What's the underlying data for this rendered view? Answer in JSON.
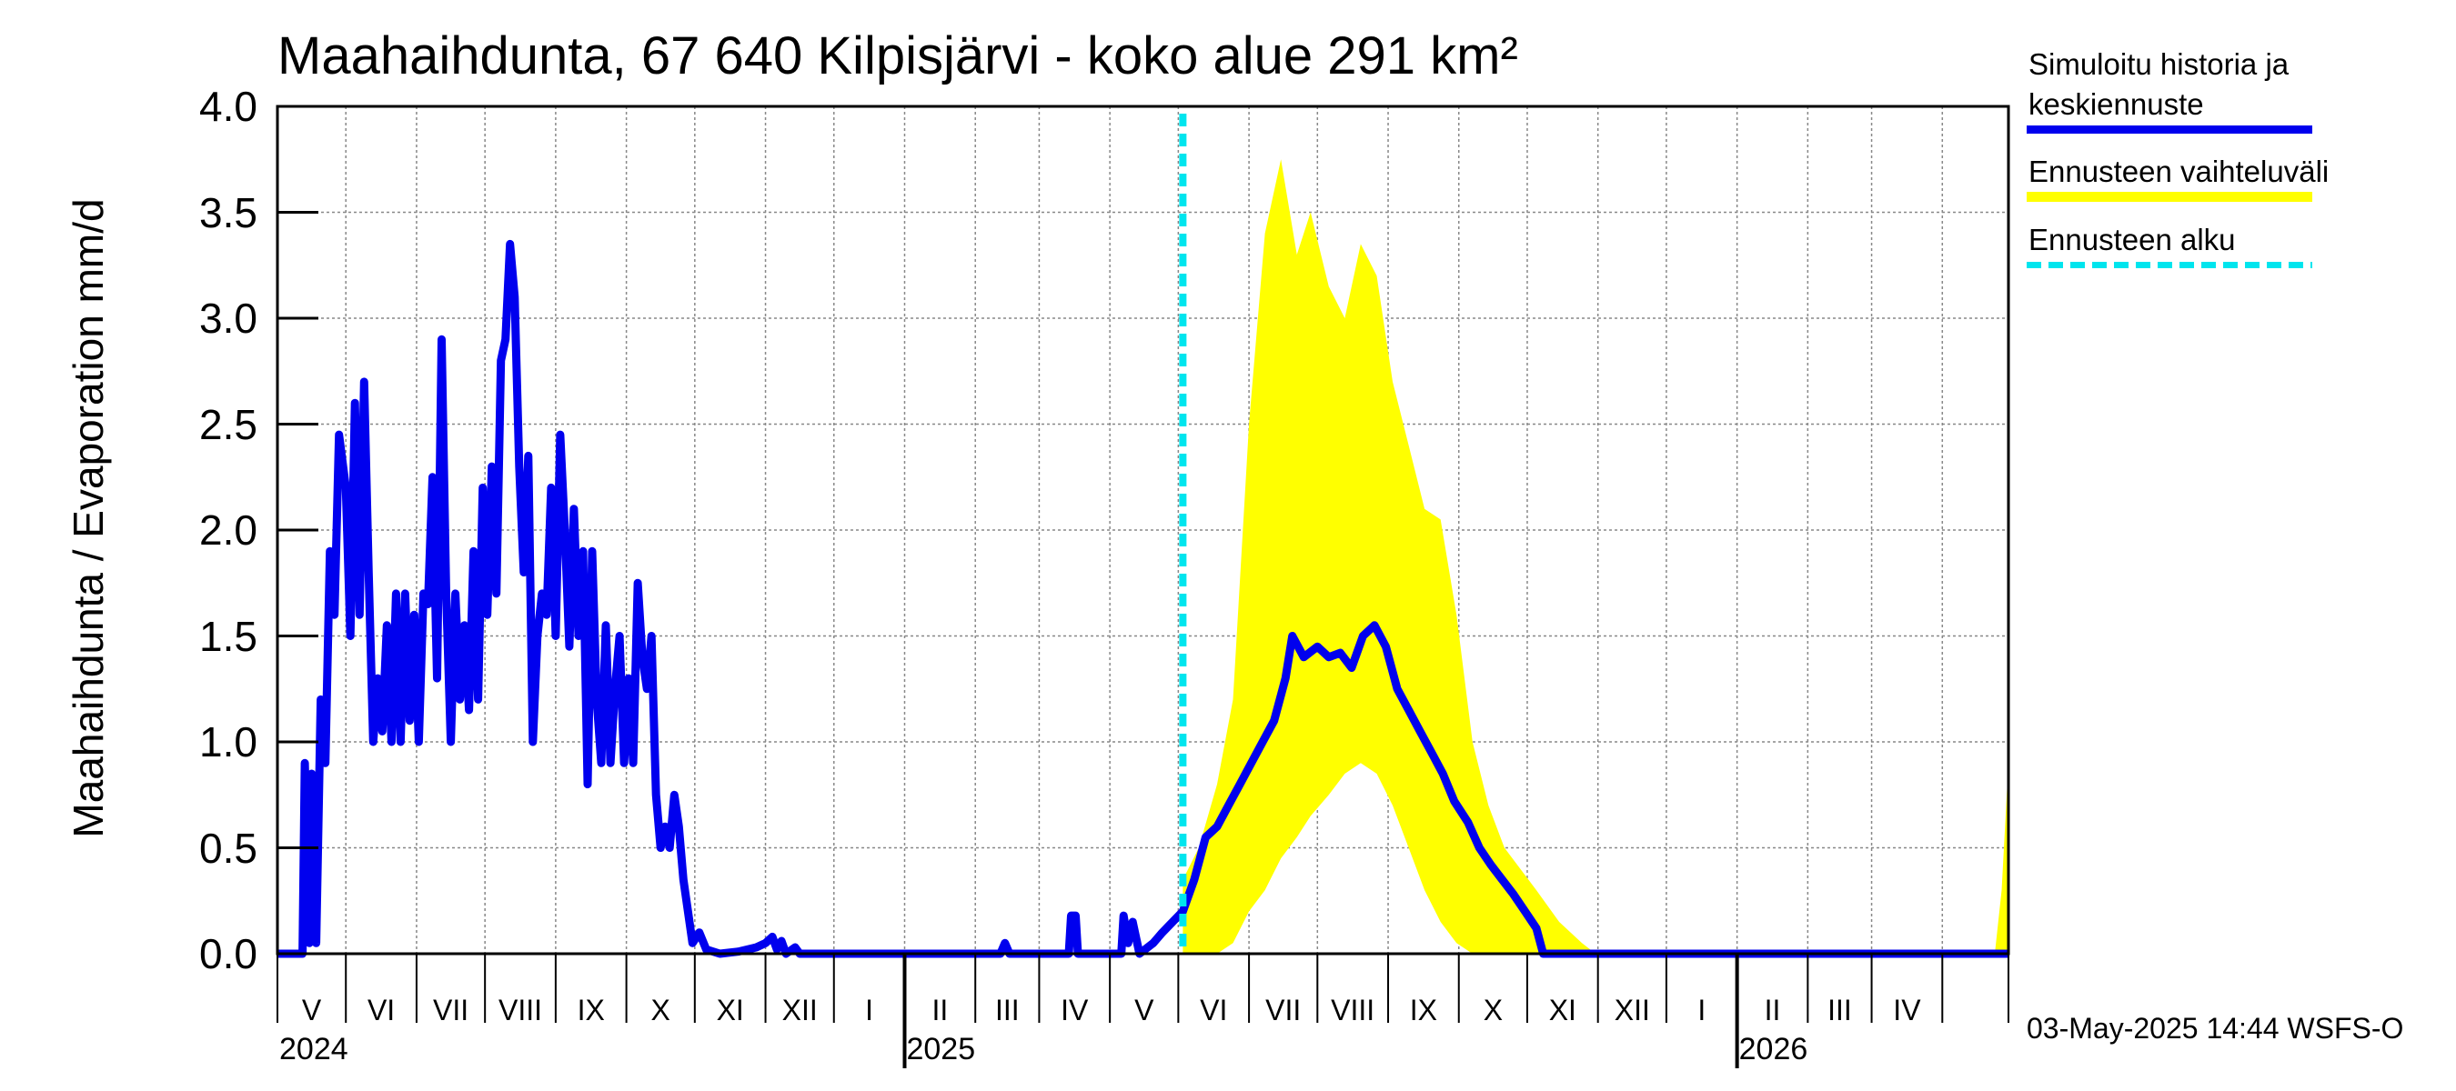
{
  "chart_data": {
    "type": "line",
    "title": "Maahaihdunta, 67 640 Kilpisjärvi - koko alue 291 km²",
    "ylabel": "Maahaihdunta / Evaporation   mm/d",
    "ylim": [
      0,
      4.0
    ],
    "y_ticks": [
      "0.0",
      "0.5",
      "1.0",
      "1.5",
      "2.0",
      "2.5",
      "3.0",
      "3.5",
      "4.0"
    ],
    "x_start": "2024-04-01",
    "x_end": "2026-04-30",
    "month_labels": [
      "V",
      "VI",
      "VII",
      "VIII",
      "IX",
      "X",
      "XI",
      "XII",
      "I",
      "II",
      "III",
      "IV",
      "V",
      "VI",
      "VII",
      "VIII",
      "IX",
      "X",
      "XI",
      "XII",
      "I",
      "II",
      "III",
      "IV"
    ],
    "year_labels": [
      "2024",
      "2025",
      "2026"
    ],
    "forecast_start": "2025-05-03",
    "grid": true,
    "legend_position": "right",
    "series": [
      {
        "name": "Simuloitu historia ja keskiennuste",
        "color": "#0000ee",
        "points": [
          [
            "2024-04-01",
            0
          ],
          [
            "2024-04-12",
            0
          ],
          [
            "2024-04-13",
            0.9
          ],
          [
            "2024-04-15",
            0.05
          ],
          [
            "2024-04-16",
            0.85
          ],
          [
            "2024-04-18",
            0.05
          ],
          [
            "2024-04-20",
            1.2
          ],
          [
            "2024-04-22",
            0.9
          ],
          [
            "2024-04-24",
            1.9
          ],
          [
            "2024-04-26",
            1.6
          ],
          [
            "2024-04-28",
            2.45
          ],
          [
            "2024-05-01",
            2.2
          ],
          [
            "2024-05-03",
            1.5
          ],
          [
            "2024-05-05",
            2.6
          ],
          [
            "2024-05-07",
            1.6
          ],
          [
            "2024-05-09",
            2.7
          ],
          [
            "2024-05-11",
            1.8
          ],
          [
            "2024-05-13",
            1.0
          ],
          [
            "2024-05-15",
            1.3
          ],
          [
            "2024-05-17",
            1.05
          ],
          [
            "2024-05-19",
            1.55
          ],
          [
            "2024-05-21",
            1.0
          ],
          [
            "2024-05-23",
            1.7
          ],
          [
            "2024-05-25",
            1.0
          ],
          [
            "2024-05-27",
            1.7
          ],
          [
            "2024-05-29",
            1.1
          ],
          [
            "2024-05-31",
            1.6
          ],
          [
            "2024-06-02",
            1.0
          ],
          [
            "2024-06-04",
            1.7
          ],
          [
            "2024-06-06",
            1.65
          ],
          [
            "2024-06-08",
            2.25
          ],
          [
            "2024-06-10",
            1.3
          ],
          [
            "2024-06-12",
            2.9
          ],
          [
            "2024-06-14",
            1.7
          ],
          [
            "2024-06-16",
            1.0
          ],
          [
            "2024-06-18",
            1.7
          ],
          [
            "2024-06-20",
            1.2
          ],
          [
            "2024-06-22",
            1.55
          ],
          [
            "2024-06-24",
            1.15
          ],
          [
            "2024-06-26",
            1.9
          ],
          [
            "2024-06-28",
            1.2
          ],
          [
            "2024-06-30",
            2.2
          ],
          [
            "2024-07-02",
            1.6
          ],
          [
            "2024-07-04",
            2.3
          ],
          [
            "2024-07-06",
            1.7
          ],
          [
            "2024-07-08",
            2.8
          ],
          [
            "2024-07-10",
            2.9
          ],
          [
            "2024-07-12",
            3.35
          ],
          [
            "2024-07-14",
            3.1
          ],
          [
            "2024-07-16",
            2.3
          ],
          [
            "2024-07-18",
            1.8
          ],
          [
            "2024-07-20",
            2.35
          ],
          [
            "2024-07-22",
            1.0
          ],
          [
            "2024-07-24",
            1.5
          ],
          [
            "2024-07-26",
            1.7
          ],
          [
            "2024-07-28",
            1.6
          ],
          [
            "2024-07-30",
            2.2
          ],
          [
            "2024-08-01",
            1.5
          ],
          [
            "2024-08-03",
            2.45
          ],
          [
            "2024-08-05",
            2.0
          ],
          [
            "2024-08-07",
            1.45
          ],
          [
            "2024-08-09",
            2.1
          ],
          [
            "2024-08-11",
            1.5
          ],
          [
            "2024-08-13",
            1.9
          ],
          [
            "2024-08-15",
            0.8
          ],
          [
            "2024-08-17",
            1.9
          ],
          [
            "2024-08-19",
            1.2
          ],
          [
            "2024-08-21",
            0.9
          ],
          [
            "2024-08-23",
            1.55
          ],
          [
            "2024-08-25",
            0.9
          ],
          [
            "2024-08-27",
            1.25
          ],
          [
            "2024-08-29",
            1.5
          ],
          [
            "2024-08-31",
            0.9
          ],
          [
            "2024-09-02",
            1.3
          ],
          [
            "2024-09-04",
            0.9
          ],
          [
            "2024-09-06",
            1.75
          ],
          [
            "2024-09-08",
            1.4
          ],
          [
            "2024-09-10",
            1.25
          ],
          [
            "2024-09-12",
            1.5
          ],
          [
            "2024-09-14",
            0.75
          ],
          [
            "2024-09-16",
            0.5
          ],
          [
            "2024-09-18",
            0.6
          ],
          [
            "2024-09-20",
            0.5
          ],
          [
            "2024-09-22",
            0.75
          ],
          [
            "2024-09-24",
            0.6
          ],
          [
            "2024-09-26",
            0.35
          ],
          [
            "2024-09-28",
            0.2
          ],
          [
            "2024-09-30",
            0.05
          ],
          [
            "2024-10-03",
            0.1
          ],
          [
            "2024-10-06",
            0.02
          ],
          [
            "2024-10-12",
            0
          ],
          [
            "2024-10-20",
            0.01
          ],
          [
            "2024-10-28",
            0.03
          ],
          [
            "2024-11-01",
            0.05
          ],
          [
            "2024-11-04",
            0.08
          ],
          [
            "2024-11-06",
            0.02
          ],
          [
            "2024-11-08",
            0.06
          ],
          [
            "2024-11-10",
            0
          ],
          [
            "2024-11-14",
            0.03
          ],
          [
            "2024-11-16",
            0
          ],
          [
            "2025-02-12",
            0
          ],
          [
            "2025-02-14",
            0.05
          ],
          [
            "2025-02-16",
            0
          ],
          [
            "2025-03-14",
            0
          ],
          [
            "2025-03-15",
            0.18
          ],
          [
            "2025-03-17",
            0.18
          ],
          [
            "2025-03-18",
            0
          ],
          [
            "2025-04-06",
            0
          ],
          [
            "2025-04-07",
            0.18
          ],
          [
            "2025-04-09",
            0.05
          ],
          [
            "2025-04-11",
            0.15
          ],
          [
            "2025-04-14",
            0
          ],
          [
            "2025-04-20",
            0.05
          ],
          [
            "2025-04-24",
            0.1
          ],
          [
            "2025-05-03",
            0.2
          ],
          [
            "2025-05-08",
            0.35
          ],
          [
            "2025-05-13",
            0.55
          ],
          [
            "2025-05-18",
            0.6
          ],
          [
            "2025-05-23",
            0.7
          ],
          [
            "2025-05-28",
            0.8
          ],
          [
            "2025-06-02",
            0.9
          ],
          [
            "2025-06-07",
            1.0
          ],
          [
            "2025-06-12",
            1.1
          ],
          [
            "2025-06-17",
            1.3
          ],
          [
            "2025-06-20",
            1.5
          ],
          [
            "2025-06-25",
            1.4
          ],
          [
            "2025-07-01",
            1.45
          ],
          [
            "2025-07-06",
            1.4
          ],
          [
            "2025-07-11",
            1.42
          ],
          [
            "2025-07-16",
            1.35
          ],
          [
            "2025-07-21",
            1.5
          ],
          [
            "2025-07-26",
            1.55
          ],
          [
            "2025-07-31",
            1.45
          ],
          [
            "2025-08-05",
            1.25
          ],
          [
            "2025-08-10",
            1.15
          ],
          [
            "2025-08-15",
            1.05
          ],
          [
            "2025-08-20",
            0.95
          ],
          [
            "2025-08-25",
            0.85
          ],
          [
            "2025-08-30",
            0.72
          ],
          [
            "2025-09-05",
            0.62
          ],
          [
            "2025-09-10",
            0.5
          ],
          [
            "2025-09-15",
            0.42
          ],
          [
            "2025-09-20",
            0.35
          ],
          [
            "2025-09-25",
            0.28
          ],
          [
            "2025-09-30",
            0.2
          ],
          [
            "2025-10-05",
            0.12
          ],
          [
            "2025-10-08",
            0
          ],
          [
            "2026-04-30",
            0
          ]
        ]
      },
      {
        "name": "Ennusteen vaihteluväli",
        "color": "#ffff00",
        "points": [
          [
            "2025-05-03",
            0.35,
            0
          ],
          [
            "2025-05-10",
            0.5,
            0
          ],
          [
            "2025-05-18",
            0.8,
            0
          ],
          [
            "2025-05-25",
            1.2,
            0.05
          ],
          [
            "2025-06-01",
            2.5,
            0.2
          ],
          [
            "2025-06-08",
            3.4,
            0.3
          ],
          [
            "2025-06-15",
            3.75,
            0.45
          ],
          [
            "2025-06-22",
            3.3,
            0.55
          ],
          [
            "2025-06-28",
            3.5,
            0.65
          ],
          [
            "2025-07-06",
            3.15,
            0.75
          ],
          [
            "2025-07-13",
            3.0,
            0.85
          ],
          [
            "2025-07-20",
            3.35,
            0.9
          ],
          [
            "2025-07-27",
            3.2,
            0.85
          ],
          [
            "2025-08-03",
            2.7,
            0.7
          ],
          [
            "2025-08-10",
            2.4,
            0.5
          ],
          [
            "2025-08-17",
            2.1,
            0.3
          ],
          [
            "2025-08-24",
            2.05,
            0.15
          ],
          [
            "2025-08-31",
            1.6,
            0.05
          ],
          [
            "2025-09-07",
            1.0,
            0
          ],
          [
            "2025-09-14",
            0.7,
            0
          ],
          [
            "2025-09-21",
            0.5,
            0
          ],
          [
            "2025-09-28",
            0.4,
            0
          ],
          [
            "2025-10-05",
            0.3,
            0
          ],
          [
            "2025-10-15",
            0.15,
            0
          ],
          [
            "2025-10-25",
            0.05,
            0
          ],
          [
            "2025-10-31",
            0,
            0
          ],
          [
            "2026-04-24",
            0,
            0
          ],
          [
            "2026-04-27",
            0.3,
            0
          ],
          [
            "2026-04-30",
            0.9,
            0
          ]
        ]
      },
      {
        "name": "Ennusteen alku",
        "color": "#00e5ee"
      }
    ]
  },
  "footer": "03-May-2025 14:44 WSFS-O"
}
